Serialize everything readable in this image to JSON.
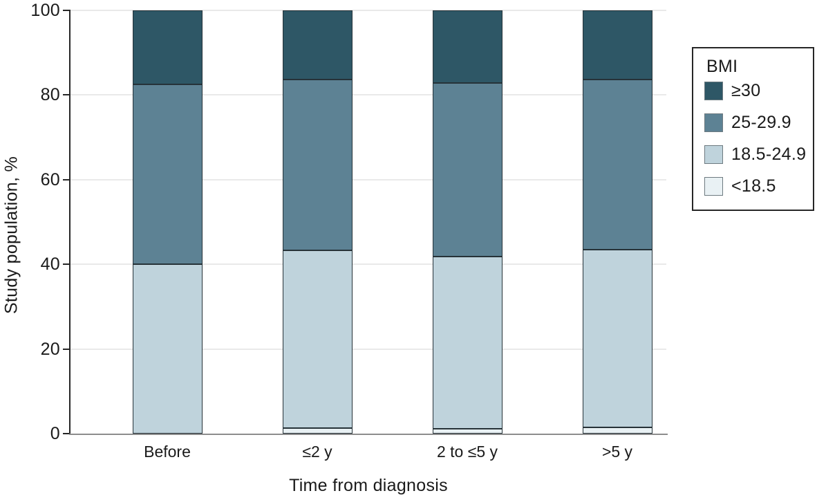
{
  "chart_data": {
    "type": "bar",
    "stacked": true,
    "title": "",
    "xlabel": "Time from diagnosis",
    "ylabel": "Study population, %",
    "categories": [
      "Before",
      "≤2 y",
      "2 to ≤5 y",
      ">5 y"
    ],
    "series": [
      {
        "name": "<18.5",
        "color": "#e9f1f4",
        "values": [
          0,
          1.3,
          1.2,
          1.5
        ]
      },
      {
        "name": "18.5-24.9",
        "color": "#bfd3dc",
        "values": [
          40,
          42.0,
          40.6,
          42.0
        ]
      },
      {
        "name": "25-29.9",
        "color": "#5d8294",
        "values": [
          42.5,
          40.4,
          41.0,
          40.1
        ]
      },
      {
        "name": "≥30",
        "color": "#2e5766",
        "values": [
          17.5,
          16.3,
          17.2,
          16.4
        ]
      }
    ],
    "ylim": [
      0,
      100
    ],
    "yticks": [
      0,
      20,
      40,
      60,
      80,
      100
    ],
    "grid": true,
    "legend_title": "BMI",
    "legend_position": "right",
    "legend_order": [
      "≥30",
      "25-29.9",
      "18.5-24.9",
      "<18.5"
    ]
  },
  "colors": {
    "background": "#ffffff",
    "text": "#1a1a1a",
    "segment_border": "#263238",
    "grid_line": "#e9e9e9",
    "axis_y": "#262626",
    "axis_x": "#8c8c8c",
    "legend_border": "#262626",
    "swatch_border": "#6d7a80"
  }
}
